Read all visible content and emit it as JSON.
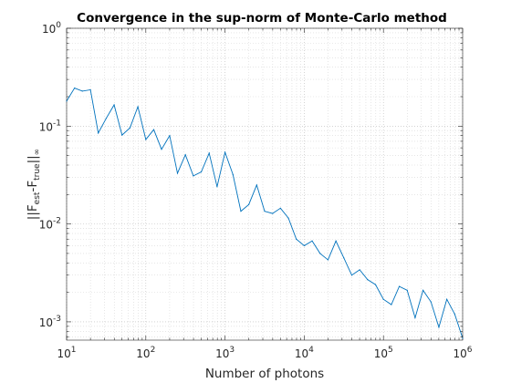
{
  "chart_data": {
    "type": "line",
    "title": "Convergence in the sup-norm of Monte-Carlo method",
    "xlabel": "Number of photons",
    "ylabel": {
      "parts": [
        "||F",
        "est",
        "-F",
        "true",
        "||",
        "∞"
      ]
    },
    "xscale": "log",
    "yscale": "log",
    "xlim": [
      10,
      1000000
    ],
    "ylim": [
      0.00065,
      1
    ],
    "grid": true,
    "minor_grid": true,
    "series_color": "#0072BD",
    "x_ticks": [
      {
        "base": "10",
        "exp": "1",
        "value": 10
      },
      {
        "base": "10",
        "exp": "2",
        "value": 100
      },
      {
        "base": "10",
        "exp": "3",
        "value": 1000
      },
      {
        "base": "10",
        "exp": "4",
        "value": 10000
      },
      {
        "base": "10",
        "exp": "5",
        "value": 100000
      },
      {
        "base": "10",
        "exp": "6",
        "value": 1000000
      }
    ],
    "y_ticks": [
      {
        "base": "10",
        "exp": "0",
        "value": 1
      },
      {
        "base": "10",
        "exp": "-1",
        "value": 0.1
      },
      {
        "base": "10",
        "exp": "-2",
        "value": 0.01
      },
      {
        "base": "10",
        "exp": "-3",
        "value": 0.001
      }
    ],
    "x": [
      10,
      12.6,
      15.8,
      20,
      25.1,
      31.6,
      39.8,
      50.1,
      63.1,
      79.4,
      100,
      126,
      158,
      200,
      251,
      316,
      398,
      501,
      631,
      794,
      1000,
      1259,
      1585,
      1995,
      2512,
      3162,
      3981,
      5012,
      6310,
      7943,
      10000,
      12589,
      15849,
      19953,
      25119,
      31623,
      39811,
      50119,
      63096,
      79433,
      100000,
      125893,
      158489,
      199526,
      251189,
      316228,
      398107,
      501187,
      630957,
      794328,
      1000000
    ],
    "y": [
      0.18,
      0.245,
      0.228,
      0.235,
      0.085,
      0.12,
      0.165,
      0.081,
      0.096,
      0.158,
      0.073,
      0.092,
      0.058,
      0.08,
      0.033,
      0.051,
      0.031,
      0.034,
      0.053,
      0.024,
      0.054,
      0.032,
      0.0135,
      0.0158,
      0.025,
      0.0135,
      0.0128,
      0.0145,
      0.0115,
      0.007,
      0.006,
      0.0067,
      0.005,
      0.0043,
      0.0067,
      0.0045,
      0.003,
      0.0034,
      0.0027,
      0.0024,
      0.0017,
      0.0015,
      0.0023,
      0.0021,
      0.0011,
      0.0021,
      0.0016,
      0.00088,
      0.0017,
      0.0012,
      0.00068
    ]
  }
}
